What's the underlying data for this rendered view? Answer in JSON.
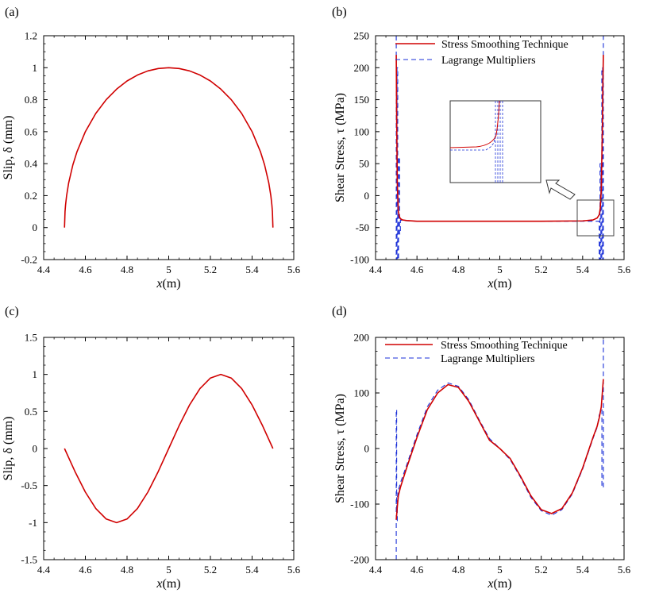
{
  "colors": {
    "smooth": "#d00000",
    "lagrange": "#1a2fd8",
    "axis": "#000000"
  },
  "chart_data": [
    {
      "panel": "(a)",
      "type": "line",
      "xlabel_var": "x",
      "xlabel_unit": "(m)",
      "ylabel": "Slip,  δ (mm)",
      "xlim": [
        4.4,
        5.6
      ],
      "ylim": [
        -0.2,
        1.2
      ],
      "xticks": [
        "4.4",
        "4.6",
        "4.8",
        "5",
        "5.2",
        "5.4",
        "5.6"
      ],
      "yticks": [
        "-0.2",
        "0",
        "0.2",
        "0.4",
        "0.6",
        "0.8",
        "1",
        "1.2"
      ],
      "legend": [],
      "series": [
        {
          "name": "Slip",
          "color": "#d00000",
          "dash": false,
          "x": [
            4.5,
            4.5025,
            4.505,
            4.51,
            4.52,
            4.54,
            4.56,
            4.6,
            4.65,
            4.7,
            4.75,
            4.8,
            4.85,
            4.9,
            4.95,
            5.0,
            5.05,
            5.1,
            5.15,
            5.2,
            5.25,
            5.3,
            5.35,
            5.4,
            5.44,
            5.46,
            5.48,
            5.49,
            5.495,
            5.4975,
            5.5
          ],
          "y": [
            0,
            0.1,
            0.141,
            0.199,
            0.28,
            0.392,
            0.475,
            0.6,
            0.714,
            0.8,
            0.866,
            0.917,
            0.954,
            0.98,
            0.995,
            1.0,
            0.995,
            0.98,
            0.954,
            0.917,
            0.866,
            0.8,
            0.714,
            0.6,
            0.475,
            0.392,
            0.28,
            0.199,
            0.141,
            0.1,
            0
          ]
        }
      ]
    },
    {
      "panel": "(b)",
      "type": "line",
      "xlabel_var": "x",
      "xlabel_unit": "(m)",
      "ylabel": "Shear Stress,  τ (MPa)",
      "xlim": [
        4.4,
        5.6
      ],
      "ylim": [
        -100,
        250
      ],
      "xticks": [
        "4.4",
        "4.6",
        "4.8",
        "5",
        "5.2",
        "5.4",
        "5.6"
      ],
      "yticks": [
        "-100",
        "-50",
        "0",
        "50",
        "100",
        "150",
        "200",
        "250"
      ],
      "legend": [
        "Stress Smoothing Technique",
        "Lagrange Multipliers"
      ],
      "series": [
        {
          "name": "Stress Smoothing Technique",
          "color": "#d00000",
          "dash": false,
          "x": [
            4.5,
            4.502,
            4.505,
            4.51,
            4.515,
            4.52,
            4.53,
            4.55,
            4.6,
            4.8,
            5.0,
            5.2,
            5.4,
            5.45,
            5.47,
            5.48,
            5.485,
            5.49,
            5.495,
            5.498,
            5.5
          ],
          "y": [
            220,
            120,
            20,
            -25,
            -33,
            -36,
            -38,
            -39,
            -40,
            -40,
            -40,
            -40,
            -39.5,
            -38,
            -35,
            -30,
            -20,
            10,
            100,
            180,
            220
          ]
        },
        {
          "name": "Lagrange Multipliers",
          "color": "#1a2fd8",
          "dash": true,
          "x": [
            4.5,
            4.5,
            4.5035,
            4.5035,
            4.507,
            4.507,
            4.511,
            4.511,
            4.516,
            4.516,
            4.52,
            4.52,
            4.53,
            4.6,
            4.8,
            5.0,
            5.2,
            5.4,
            5.47,
            5.48,
            5.48,
            5.484,
            5.484,
            5.488,
            5.488,
            5.4925,
            5.4925,
            5.4965,
            5.4965,
            5.5,
            5.5
          ],
          "y": [
            250,
            -100,
            -100,
            200,
            200,
            -100,
            -100,
            60,
            60,
            -60,
            -60,
            -38,
            -39,
            -40,
            -40,
            -40,
            -40,
            -40,
            -40,
            -40,
            -100,
            -100,
            50,
            50,
            -100,
            -100,
            200,
            200,
            -100,
            -100,
            250
          ]
        }
      ],
      "inset_arrow": "pointing up-left from zoom box to inset"
    },
    {
      "panel": "(c)",
      "type": "line",
      "xlabel_var": "x",
      "xlabel_unit": "(m)",
      "ylabel": "Slip,  δ (mm)",
      "xlim": [
        4.4,
        5.6
      ],
      "ylim": [
        -1.5,
        1.5
      ],
      "xticks": [
        "4.4",
        "4.6",
        "4.8",
        "5",
        "5.2",
        "5.4",
        "5.6"
      ],
      "yticks": [
        "-1.5",
        "-1",
        "-0.5",
        "0",
        "0.5",
        "1",
        "1.5"
      ],
      "legend": [],
      "series": [
        {
          "name": "Slip",
          "color": "#d00000",
          "dash": false,
          "x": [
            4.5,
            4.55,
            4.6,
            4.65,
            4.7,
            4.75,
            4.8,
            4.85,
            4.9,
            4.95,
            5.0,
            5.05,
            5.1,
            5.15,
            5.2,
            5.25,
            5.3,
            5.35,
            5.4,
            5.45,
            5.5
          ],
          "y": [
            0,
            -0.309,
            -0.588,
            -0.809,
            -0.951,
            -1.0,
            -0.951,
            -0.809,
            -0.588,
            -0.309,
            0,
            0.309,
            0.588,
            0.809,
            0.951,
            1.0,
            0.951,
            0.809,
            0.588,
            0.309,
            0
          ]
        }
      ]
    },
    {
      "panel": "(d)",
      "type": "line",
      "xlabel_var": "x",
      "xlabel_unit": "(m)",
      "ylabel": "Shear Stress,  τ (MPa)",
      "xlim": [
        4.4,
        5.6
      ],
      "ylim": [
        -200,
        200
      ],
      "xticks": [
        "4.4",
        "4.6",
        "4.8",
        "5",
        "5.2",
        "5.4",
        "5.6"
      ],
      "yticks": [
        "-200",
        "-100",
        "0",
        "100",
        "200"
      ],
      "legend": [
        "Stress Smoothing Technique",
        "Lagrange Multipliers"
      ],
      "series": [
        {
          "name": "Stress Smoothing Technique",
          "color": "#d00000",
          "dash": false,
          "x": [
            4.5,
            4.505,
            4.51,
            4.52,
            4.55,
            4.6,
            4.65,
            4.7,
            4.75,
            4.8,
            4.85,
            4.9,
            4.95,
            5.0,
            5.05,
            5.1,
            5.15,
            5.2,
            5.25,
            5.3,
            5.35,
            5.4,
            5.45,
            5.47,
            5.48,
            5.49,
            5.495,
            5.5
          ],
          "y": [
            -128,
            -105,
            -85,
            -70,
            -35,
            20,
            70,
            100,
            115,
            110,
            85,
            50,
            15,
            0,
            -18,
            -50,
            -85,
            -110,
            -117,
            -108,
            -80,
            -35,
            20,
            40,
            55,
            75,
            100,
            125
          ]
        },
        {
          "name": "Lagrange Multipliers",
          "color": "#1a2fd8",
          "dash": true,
          "x": [
            4.5,
            4.5,
            4.502,
            4.502,
            4.505,
            4.505,
            4.508,
            4.51,
            4.52,
            4.55,
            4.6,
            4.65,
            4.7,
            4.75,
            4.8,
            4.85,
            4.9,
            4.95,
            5.0,
            5.05,
            5.1,
            5.15,
            5.2,
            5.25,
            5.3,
            5.35,
            5.4,
            5.45,
            5.47,
            5.48,
            5.49,
            5.493,
            5.493,
            5.5,
            5.5
          ],
          "y": [
            -200,
            70,
            70,
            -130,
            -130,
            -90,
            -80,
            -75,
            -62,
            -30,
            25,
            75,
            105,
            118,
            112,
            88,
            52,
            18,
            0,
            -20,
            -52,
            -88,
            -112,
            -120,
            -110,
            -82,
            -37,
            18,
            38,
            60,
            70,
            70,
            -70,
            -70,
            200
          ]
        }
      ]
    }
  ]
}
